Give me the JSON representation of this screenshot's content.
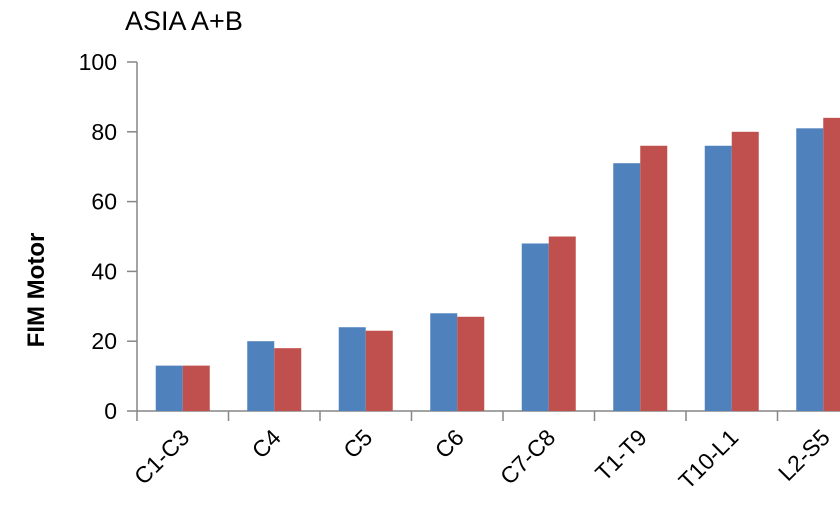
{
  "chart_data": {
    "type": "bar",
    "title": "ASIA A+B",
    "xlabel": "",
    "ylabel": "FIM Motor",
    "ylim": [
      0,
      100
    ],
    "yticks": [
      0,
      20,
      40,
      60,
      80,
      100
    ],
    "grid": false,
    "legend": "none",
    "categories": [
      "C1-C3",
      "C4",
      "C5",
      "C6",
      "C7-C8",
      "T1-T9",
      "T10-L1",
      "L2-S5"
    ],
    "series": [
      {
        "values": [
          13,
          20,
          24,
          28,
          48,
          71,
          76,
          81
        ],
        "color": "#4F81BD"
      },
      {
        "values": [
          13,
          18,
          23,
          27,
          50,
          76,
          80,
          84
        ],
        "color": "#C0504D"
      }
    ]
  }
}
